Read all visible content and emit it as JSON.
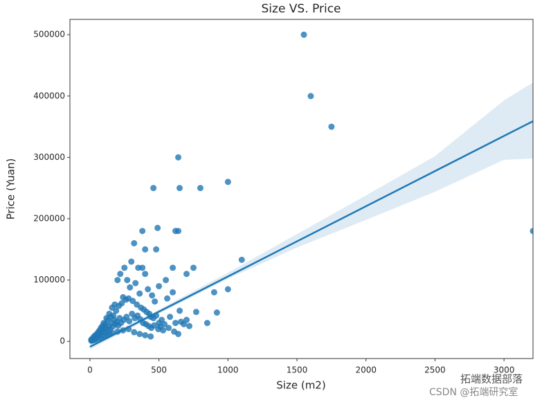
{
  "chart_data": {
    "type": "scatter",
    "title": "Size VS. Price",
    "x_label": "Size (m2)",
    "y_label": "Price (Yuan)",
    "color": "#1f77b4",
    "x": [
      1550,
      1600,
      1750,
      3210,
      640,
      460,
      650,
      800,
      1000,
      1100,
      640,
      620,
      490,
      380,
      320,
      400,
      480,
      250,
      300,
      350,
      380,
      600,
      750,
      700,
      550,
      1000,
      900,
      920,
      850,
      770,
      650,
      700,
      200,
      220,
      270,
      400,
      500,
      600,
      450,
      330,
      420,
      560,
      470,
      360,
      290,
      240,
      180,
      160,
      140,
      120,
      100,
      80,
      60,
      40,
      30,
      20,
      10,
      50,
      70,
      90,
      110,
      130,
      150,
      170,
      190,
      210,
      230,
      260,
      280,
      310,
      340,
      370,
      390,
      410,
      430,
      440,
      460,
      480,
      500,
      520,
      540,
      580,
      620,
      660,
      680,
      720,
      15,
      25,
      35,
      45,
      55,
      65,
      75,
      85,
      95,
      105,
      115,
      125,
      135,
      145,
      155,
      165,
      175,
      185,
      195,
      205,
      215,
      225,
      245,
      265,
      285,
      305,
      325,
      345,
      365,
      385,
      405,
      425,
      445,
      465,
      495,
      510,
      530,
      570,
      610,
      640,
      10,
      20,
      30,
      40,
      60,
      80,
      100,
      120,
      140,
      160,
      200,
      240,
      280,
      320,
      360,
      400,
      440
    ],
    "values": [
      500000,
      400000,
      350000,
      180000,
      300000,
      250000,
      250000,
      250000,
      260000,
      133000,
      180000,
      180000,
      185000,
      180000,
      160000,
      150000,
      150000,
      120000,
      130000,
      120000,
      120000,
      120000,
      120000,
      110000,
      100000,
      85000,
      80000,
      47000,
      30000,
      48000,
      50000,
      35000,
      100000,
      110000,
      100000,
      110000,
      90000,
      80000,
      75000,
      95000,
      85000,
      70000,
      65000,
      78000,
      88000,
      72000,
      60000,
      55000,
      45000,
      38000,
      30000,
      22000,
      15000,
      10000,
      8000,
      5000,
      3000,
      12000,
      18000,
      25000,
      28000,
      35000,
      40000,
      42000,
      50000,
      58000,
      62000,
      68000,
      70000,
      66000,
      60000,
      55000,
      52000,
      48000,
      45000,
      40000,
      38000,
      42000,
      30000,
      35000,
      28000,
      40000,
      30000,
      32000,
      28000,
      25000,
      2000,
      4000,
      6000,
      7000,
      9000,
      11000,
      14000,
      16000,
      20000,
      15000,
      22000,
      18000,
      25000,
      20000,
      30000,
      24000,
      35000,
      28000,
      32000,
      26000,
      38000,
      30000,
      35000,
      40000,
      33000,
      45000,
      38000,
      42000,
      36000,
      30000,
      28000,
      25000,
      22000,
      26000,
      20000,
      24000,
      18000,
      22000,
      16000,
      12000,
      1000,
      1500,
      2500,
      3000,
      5000,
      6000,
      8000,
      10000,
      12000,
      14000,
      16000,
      18000,
      20000,
      15000,
      12000,
      10000,
      8000
    ],
    "regression_line": {
      "x": [
        0,
        3210
      ],
      "values": [
        -8800,
        359000
      ]
    },
    "ci_band": {
      "x": [
        0,
        500,
        1000,
        1500,
        2000,
        2500,
        3000,
        3210
      ],
      "upper": [
        -4000,
        52000,
        112000,
        175000,
        238000,
        302000,
        393000,
        422000
      ],
      "lower": [
        -13000,
        45000,
        102000,
        153000,
        198000,
        244000,
        296000,
        298000
      ]
    },
    "xlim": [
      -145,
      3210
    ],
    "ylim": [
      -28000,
      525000
    ],
    "xticks": [
      0,
      500,
      1000,
      1500,
      2000,
      2500,
      3000
    ],
    "yticks": [
      0,
      100000,
      200000,
      300000,
      400000,
      500000
    ],
    "watermark": [
      "拓端数据部落",
      "CSDN @拓端研究室"
    ]
  }
}
